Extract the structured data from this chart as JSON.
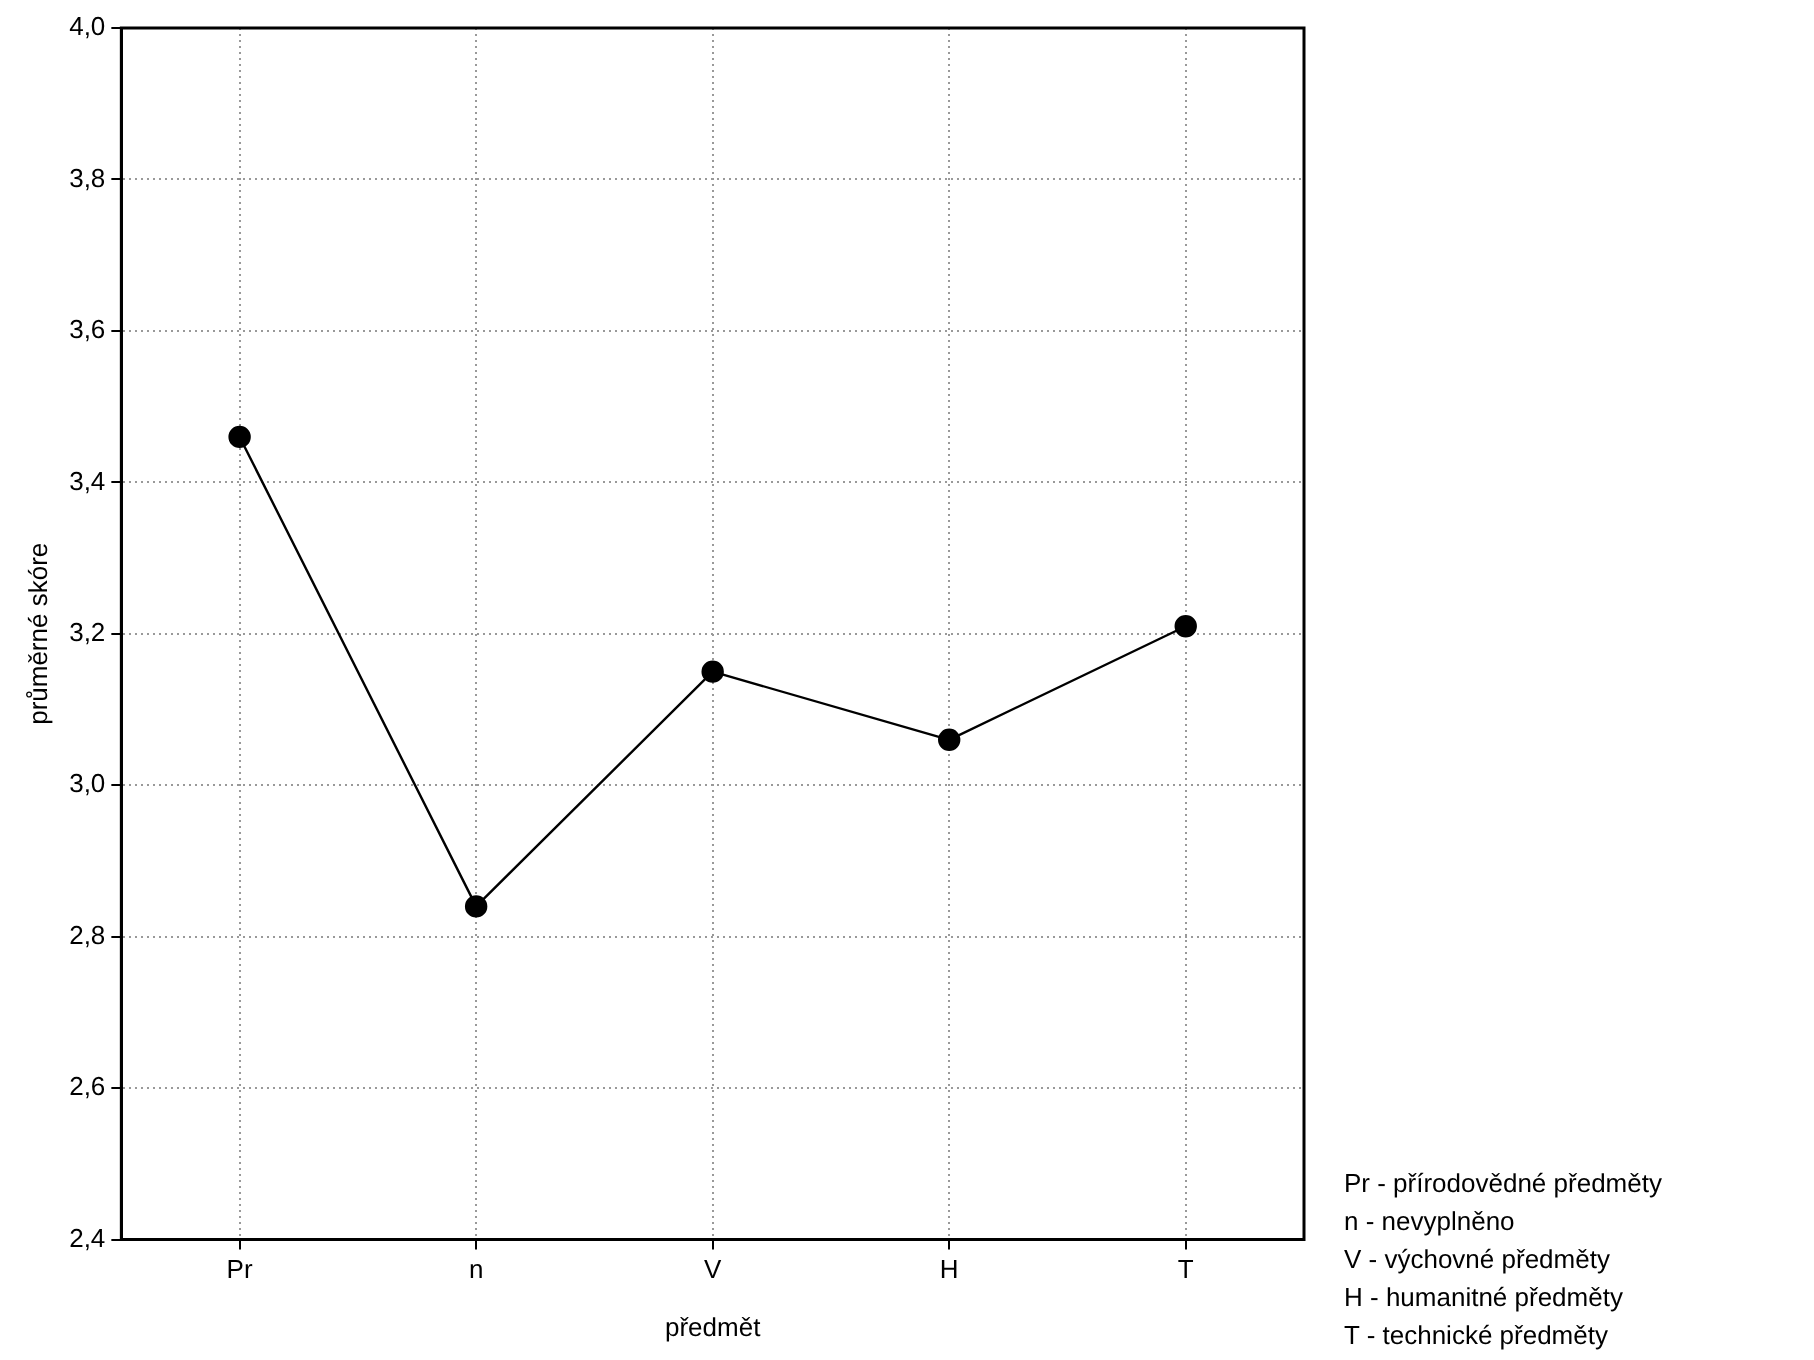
{
  "chart_data": {
    "type": "line",
    "xlabel": "předmět",
    "ylabel": "průměrné skóre",
    "categories": [
      "Pr",
      "n",
      "V",
      "H",
      "T"
    ],
    "series": [
      {
        "color": "#000000",
        "values": [
          3.46,
          2.84,
          3.15,
          3.06,
          3.21
        ]
      }
    ],
    "ylim": [
      2.4,
      4.0
    ],
    "yticks": [
      {
        "value": 2.4,
        "label": "2,4"
      },
      {
        "value": 2.6,
        "label": "2,6"
      },
      {
        "value": 2.8,
        "label": "2,8"
      },
      {
        "value": 3.0,
        "label": "3,0"
      },
      {
        "value": 3.2,
        "label": "3,2"
      },
      {
        "value": 3.4,
        "label": "3,4"
      },
      {
        "value": 3.6,
        "label": "3,6"
      },
      {
        "value": 3.8,
        "label": "3,8"
      },
      {
        "value": 4.0,
        "label": "4,0"
      }
    ],
    "grid": true,
    "marker": "circle",
    "line_style": "solid",
    "legend": false,
    "annotations": [
      "Pr - přírodovědné předměty",
      "n - nevyplněno",
      "V - výchovné předměty",
      "H - humanitné předměty",
      "T - technické předměty"
    ]
  }
}
